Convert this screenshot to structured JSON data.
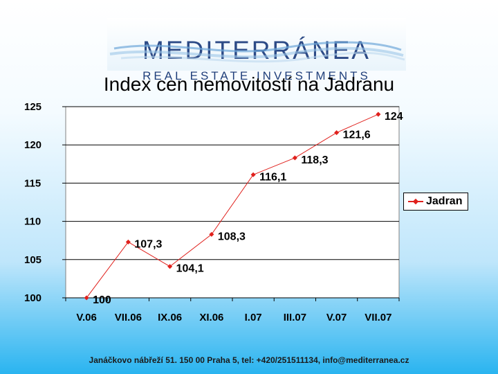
{
  "logo": {
    "name": "MEDITERRÁNEA",
    "subtitle": "REAL ESTATE INVESTMENTS"
  },
  "title": "Index cen nemovitostí na Jadranu",
  "footer": "Janáčkovo nábřeží 51. 150 00 Praha 5, tel: +420/251511134, info@mediterranea.cz",
  "chart_data": {
    "type": "line",
    "title": "Index cen nemovitostí na Jadranu",
    "categories": [
      "V.06",
      "",
      "VII.06",
      "",
      "IX.06",
      "",
      "XI.06",
      "",
      "I.07",
      "",
      "III.07",
      "",
      "V.07",
      "",
      "VII.07"
    ],
    "series": [
      {
        "name": "Jadran",
        "color": "#e0201c",
        "points": [
          {
            "x": 0,
            "y": 100,
            "label": "100"
          },
          {
            "x": 1,
            "y": 107.3,
            "label": "107,3"
          },
          {
            "x": 2,
            "y": 104.1,
            "label": "104,1"
          },
          {
            "x": 3,
            "y": 108.3,
            "label": "108,3"
          },
          {
            "x": 4,
            "y": 116.1,
            "label": "116,1"
          },
          {
            "x": 5,
            "y": 118.3,
            "label": "118,3"
          },
          {
            "x": 6,
            "y": 121.6,
            "label": "121,6"
          },
          {
            "x": 7,
            "y": 124,
            "label": "124"
          }
        ]
      }
    ],
    "y_ticks": [
      "100",
      "105",
      "110",
      "115",
      "120",
      "125"
    ],
    "x_ticks": [
      "V.06",
      "VII.06",
      "IX.06",
      "XI.06",
      "I.07",
      "III.07",
      "V.07",
      "VII.07"
    ],
    "ylim": [
      100,
      125
    ],
    "grid": true,
    "legend": "right"
  }
}
